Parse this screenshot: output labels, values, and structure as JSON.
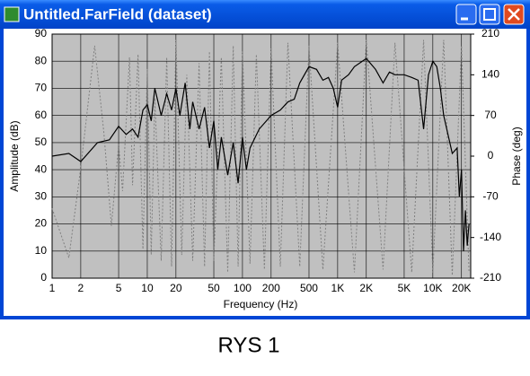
{
  "window": {
    "title": "Untitled.FarField (dataset)"
  },
  "chart_data": {
    "type": "line",
    "xlabel": "Frequency (Hz)",
    "ylabel": "Amplitude (dB)",
    "y2label": "Phase (deg)",
    "xscale": "log",
    "grid": true,
    "xlim": [
      1,
      25000
    ],
    "xticks": [
      1,
      2,
      5,
      10,
      20,
      50,
      100,
      200,
      500,
      {
        "value": 1000,
        "label": "1K"
      },
      {
        "value": 2000,
        "label": "2K"
      },
      {
        "value": 5000,
        "label": "5K"
      },
      {
        "value": 10000,
        "label": "10K"
      },
      {
        "value": 20000,
        "label": "20K"
      }
    ],
    "ylim": [
      0,
      90
    ],
    "yticks": [
      0,
      10,
      20,
      30,
      40,
      50,
      60,
      70,
      80,
      90
    ],
    "y2lim": [
      -210,
      210
    ],
    "y2ticks": [
      210,
      140,
      70,
      0,
      -70,
      -140,
      -210
    ],
    "series": [
      {
        "color": "#808080",
        "axis": "y2",
        "dash": true,
        "x": [
          1,
          1.5,
          2,
          2.8,
          3.5,
          4.2,
          5,
          5.5,
          6.5,
          7,
          8,
          9,
          10,
          11,
          12,
          14,
          16,
          18,
          20,
          23,
          26,
          30,
          35,
          40,
          45,
          50,
          60,
          70,
          80,
          90,
          100,
          120,
          140,
          170,
          200,
          250,
          300,
          400,
          500,
          700,
          1000,
          1500,
          2000,
          3000,
          4000,
          6000,
          8000,
          10000,
          13000,
          16000,
          20000,
          24000
        ],
        "values": [
          -90,
          -175,
          -20,
          190,
          40,
          -120,
          20,
          -60,
          170,
          -50,
          175,
          -160,
          150,
          -170,
          100,
          -180,
          170,
          -190,
          200,
          -170,
          140,
          -180,
          160,
          -190,
          180,
          -180,
          170,
          -200,
          190,
          -190,
          180,
          -185,
          175,
          -195,
          185,
          -190,
          195,
          -190,
          190,
          -195,
          195,
          -200,
          200,
          -195,
          195,
          -200,
          200,
          -200,
          200,
          -205,
          190,
          -200
        ]
      },
      {
        "color": "#000000",
        "axis": "y",
        "x": [
          1,
          1.5,
          2,
          3,
          4,
          5,
          6,
          7,
          8,
          9,
          10,
          11,
          12,
          14,
          16,
          18,
          20,
          22,
          25,
          28,
          30,
          35,
          40,
          45,
          50,
          55,
          60,
          70,
          80,
          90,
          100,
          110,
          120,
          150,
          200,
          250,
          300,
          350,
          400,
          500,
          600,
          700,
          800,
          900,
          1000,
          1100,
          1300,
          1500,
          2000,
          2500,
          3000,
          3500,
          4000,
          5000,
          6000,
          7000,
          8000,
          9000,
          10000,
          11000,
          12000,
          13000,
          14000,
          16000,
          18000,
          19000,
          20000,
          21000,
          22000,
          23000,
          24000
        ],
        "values": [
          45,
          46,
          43,
          50,
          51,
          56,
          53,
          55,
          52,
          62,
          64,
          58,
          70,
          60,
          68,
          62,
          70,
          60,
          72,
          55,
          65,
          55,
          63,
          48,
          58,
          40,
          52,
          38,
          50,
          35,
          52,
          40,
          48,
          55,
          60,
          62,
          65,
          66,
          72,
          78,
          77,
          73,
          74,
          70,
          63,
          73,
          75,
          78,
          81,
          77,
          72,
          76,
          75,
          75,
          74,
          73,
          55,
          75,
          80,
          78,
          70,
          60,
          55,
          46,
          48,
          30,
          40,
          10,
          25,
          12,
          20
        ]
      }
    ]
  },
  "caption": "RYS 1"
}
